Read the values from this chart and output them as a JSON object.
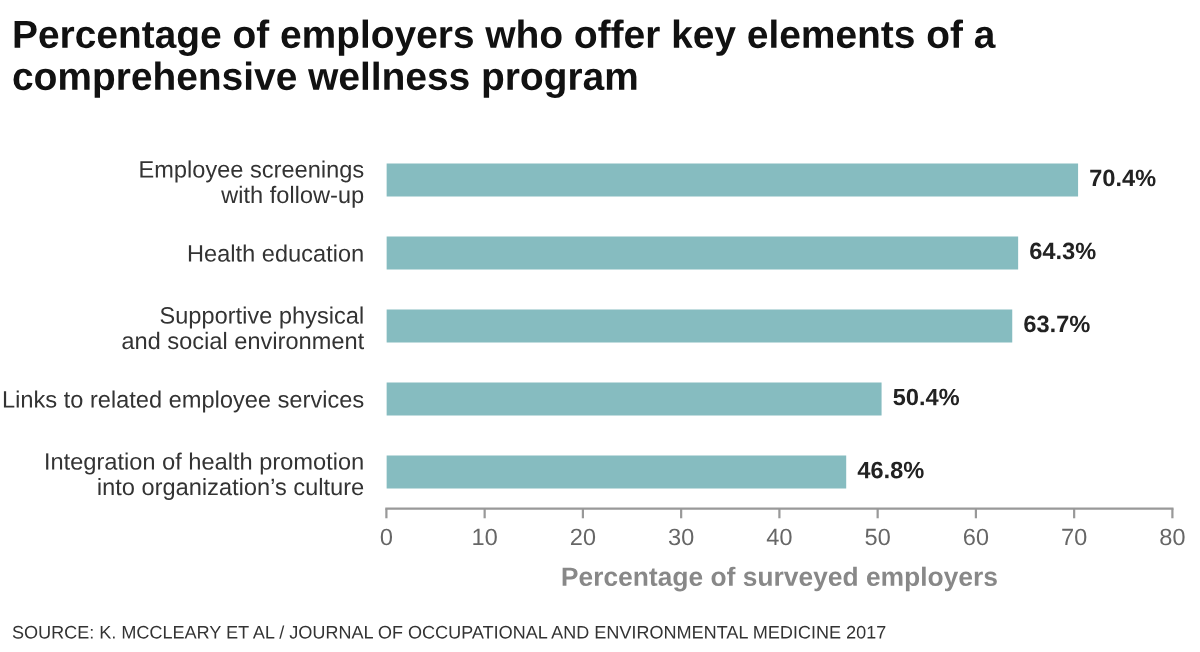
{
  "chart_data": {
    "type": "bar",
    "orientation": "horizontal",
    "title": "Percentage of employers who offer key elements of a\ncomprehensive wellness program",
    "categories": [
      "Employee screenings\nwith follow-up",
      "Health education",
      "Supportive physical\nand social environment",
      "Links to related employee services",
      "Integration of health promotion\ninto organization’s culture"
    ],
    "values": [
      70.4,
      64.3,
      63.7,
      50.4,
      46.8
    ],
    "value_labels": [
      "70.4%",
      "64.3%",
      "63.7%",
      "50.4%",
      "46.8%"
    ],
    "color": "#86bcc0",
    "xlim": [
      0,
      80
    ],
    "xticks": [
      0,
      10,
      20,
      30,
      40,
      50,
      60,
      70,
      80
    ],
    "xlabel": "Percentage of surveyed employers",
    "grid": false,
    "annotations": [
      "SOURCE: K. MCCLEARY ET AL / JOURNAL OF OCCUPATIONAL AND ENVIRONMENTAL MEDICINE 2017"
    ]
  }
}
